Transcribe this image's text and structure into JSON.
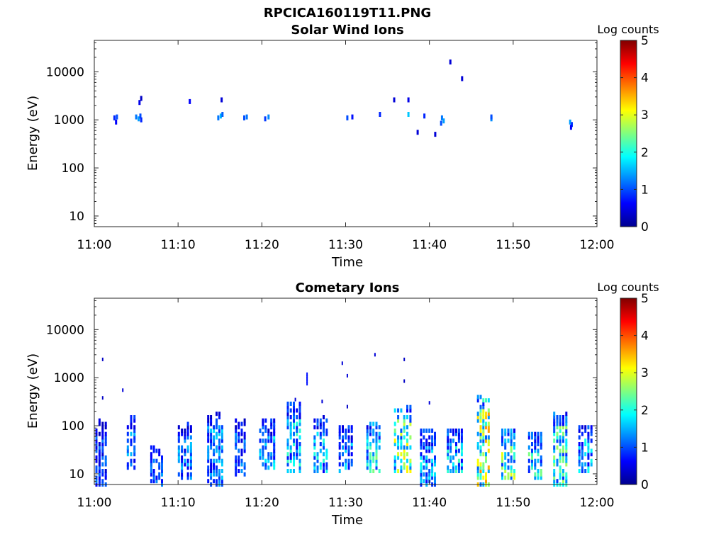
{
  "figure": {
    "title": "RPCICA160119T11.PNG"
  },
  "colorscale": {
    "stops": [
      "#00008f",
      "#0000ff",
      "#0080ff",
      "#00ffff",
      "#80ff80",
      "#ffff00",
      "#ff8000",
      "#ff0000",
      "#800000"
    ]
  },
  "chart_data": [
    {
      "type": "heatmap",
      "title": "Solar Wind Ions",
      "xlabel": "Time",
      "ylabel": "Energy (eV)",
      "x_ticks": [
        "11:00",
        "11:10",
        "11:20",
        "11:30",
        "11:40",
        "11:50",
        "12:00"
      ],
      "x_range_minutes": [
        0,
        60
      ],
      "y_scale": "log",
      "y_ticks": [
        "10",
        "100",
        "1000",
        "10000"
      ],
      "y_range": [
        6,
        45000
      ],
      "colorbar": {
        "label": "Log counts",
        "ticks": [
          "0",
          "1",
          "2",
          "3",
          "4",
          "5"
        ],
        "range": [
          0,
          5
        ]
      },
      "cells": [
        [
          2.4,
          1100,
          0.8
        ],
        [
          2.6,
          900,
          0.6
        ],
        [
          2.7,
          1150,
          1.0
        ],
        [
          5.0,
          1150,
          1.2
        ],
        [
          5.3,
          1050,
          1.4
        ],
        [
          5.5,
          1200,
          1.0
        ],
        [
          5.6,
          1000,
          0.8
        ],
        [
          5.4,
          2300,
          0.5
        ],
        [
          5.6,
          2800,
          0.3
        ],
        [
          11.4,
          2400,
          0.6
        ],
        [
          14.8,
          1100,
          1.2
        ],
        [
          15.1,
          1200,
          1.5
        ],
        [
          15.3,
          1300,
          1.1
        ],
        [
          15.2,
          2600,
          0.4
        ],
        [
          17.9,
          1100,
          1.0
        ],
        [
          18.2,
          1150,
          1.2
        ],
        [
          20.4,
          1050,
          0.9
        ],
        [
          20.8,
          1150,
          1.3
        ],
        [
          30.2,
          1100,
          1.0
        ],
        [
          30.8,
          1150,
          0.7
        ],
        [
          34.1,
          1300,
          0.8
        ],
        [
          35.8,
          2600,
          0.4
        ],
        [
          37.5,
          1300,
          1.6
        ],
        [
          37.5,
          2600,
          0.5
        ],
        [
          38.6,
          550,
          0.4
        ],
        [
          39.4,
          1200,
          0.8
        ],
        [
          40.7,
          500,
          0.4
        ],
        [
          41.5,
          1100,
          1.2
        ],
        [
          41.7,
          950,
          1.4
        ],
        [
          41.4,
          850,
          1.0
        ],
        [
          42.5,
          16000,
          0.4
        ],
        [
          43.9,
          7200,
          0.4
        ],
        [
          47.4,
          1050,
          1.3
        ],
        [
          47.4,
          1150,
          1.0
        ],
        [
          56.8,
          900,
          1.4
        ],
        [
          57.0,
          800,
          0.9
        ],
        [
          56.9,
          700,
          0.6
        ]
      ]
    },
    {
      "type": "heatmap",
      "title": "Cometary Ions",
      "xlabel": "Time",
      "ylabel": "Energy (eV)",
      "x_ticks": [
        "11:00",
        "11:10",
        "11:20",
        "11:30",
        "11:40",
        "11:50",
        "12:00"
      ],
      "x_range_minutes": [
        0,
        60
      ],
      "y_scale": "log",
      "y_ticks": [
        "10",
        "100",
        "1000",
        "10000"
      ],
      "y_range": [
        6,
        45000
      ],
      "colorbar": {
        "label": "Log counts",
        "ticks": [
          "0",
          "1",
          "2",
          "3",
          "4",
          "5"
        ],
        "range": [
          0,
          5
        ]
      },
      "bursts": [
        {
          "t": 1.0,
          "lo": 6,
          "hi": 130,
          "level": 1.0,
          "width": 1.5,
          "extra": [
            [
              2400,
              0.3
            ],
            [
              380,
              0.3
            ]
          ]
        },
        {
          "t": 3.4,
          "lo": 550,
          "hi": 560,
          "level": 0.4,
          "width": 0.4
        },
        {
          "t": 4.6,
          "lo": 12,
          "hi": 160,
          "level": 1.3,
          "width": 1.2
        },
        {
          "t": 7.6,
          "lo": 6,
          "hi": 40,
          "level": 1.2,
          "width": 1.6
        },
        {
          "t": 11.0,
          "lo": 8,
          "hi": 120,
          "level": 1.3,
          "width": 1.8
        },
        {
          "t": 14.6,
          "lo": 6,
          "hi": 200,
          "level": 1.4,
          "width": 2.0
        },
        {
          "t": 17.6,
          "lo": 9,
          "hi": 150,
          "level": 1.2,
          "width": 1.4
        },
        {
          "t": 20.8,
          "lo": 12,
          "hi": 130,
          "level": 1.6,
          "width": 2.0
        },
        {
          "t": 24.0,
          "lo": 10,
          "hi": 300,
          "level": 1.8,
          "width": 1.8,
          "extra": [
            [
              350,
              0.4
            ]
          ]
        },
        {
          "t": 25.4,
          "lo": 750,
          "hi": 1300,
          "level": 0.7,
          "width": 0.4
        },
        {
          "t": 27.2,
          "lo": 10,
          "hi": 170,
          "level": 1.7,
          "width": 1.8,
          "extra": [
            [
              320,
              0.4
            ]
          ]
        },
        {
          "t": 29.6,
          "lo": 2000,
          "hi": 2100,
          "level": 0.4,
          "width": 0.4
        },
        {
          "t": 30.2,
          "lo": 10,
          "hi": 100,
          "level": 1.5,
          "width": 1.8,
          "extra": [
            [
              1100,
              0.4
            ],
            [
              250,
              0.3
            ]
          ]
        },
        {
          "t": 33.5,
          "lo": 10,
          "hi": 110,
          "level": 2.2,
          "width": 1.8,
          "extra": [
            [
              3000,
              0.4
            ]
          ]
        },
        {
          "t": 37.0,
          "lo": 10,
          "hi": 280,
          "level": 2.6,
          "width": 2.2,
          "extra": [
            [
              850,
              0.3
            ],
            [
              2400,
              0.3
            ]
          ]
        },
        {
          "t": 40.0,
          "lo": 6,
          "hi": 80,
          "level": 1.6,
          "width": 2.0,
          "extra": [
            [
              300,
              0.4
            ]
          ]
        },
        {
          "t": 43.2,
          "lo": 10,
          "hi": 90,
          "level": 1.8,
          "width": 2.0
        },
        {
          "t": 46.6,
          "lo": 6,
          "hi": 430,
          "level": 3.0,
          "width": 1.6
        },
        {
          "t": 49.6,
          "lo": 8,
          "hi": 90,
          "level": 2.5,
          "width": 1.8
        },
        {
          "t": 52.8,
          "lo": 8,
          "hi": 70,
          "level": 2.0,
          "width": 1.8
        },
        {
          "t": 55.8,
          "lo": 6,
          "hi": 200,
          "level": 2.2,
          "width": 1.8
        },
        {
          "t": 58.8,
          "lo": 10,
          "hi": 100,
          "level": 1.6,
          "width": 1.8
        }
      ]
    }
  ]
}
